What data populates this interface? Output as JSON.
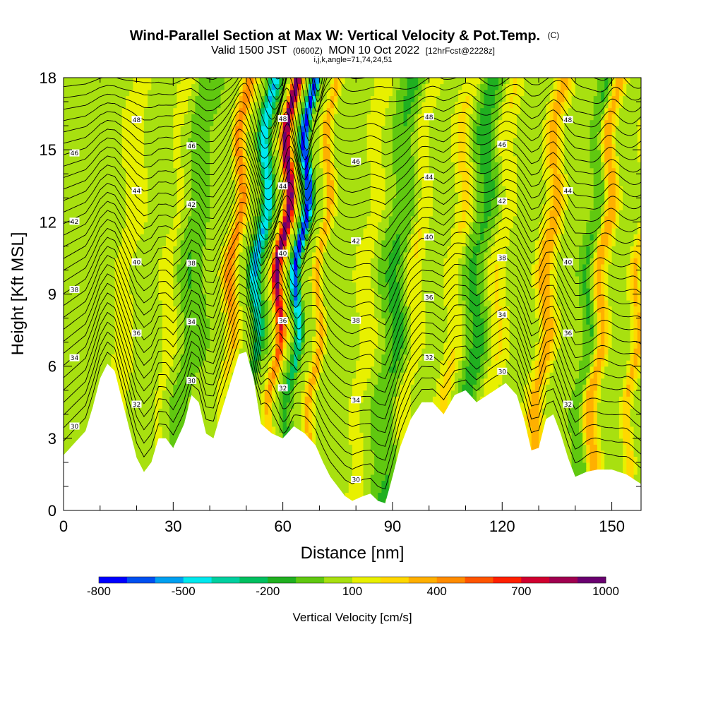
{
  "title": {
    "main": "Wind-Parallel Section at Max W: Vertical Velocity & Pot.Temp.",
    "main_tag": "(C)",
    "valid_prefix": "Valid 1500 JST",
    "valid_utc": "(0600Z)",
    "valid_date": "MON 10 Oct 2022",
    "forecast": "[12hrFcst@2228z]",
    "indices": "i,j,k,angle=71,74,24,51"
  },
  "chart_data": {
    "type": "heatmap",
    "xlabel": "Distance [nm]",
    "ylabel": "Height [Kft MSL]",
    "xlim": [
      0,
      158
    ],
    "ylim": [
      0,
      18
    ],
    "xticks": [
      0,
      30,
      60,
      90,
      120,
      150
    ],
    "yticks": [
      0,
      3,
      6,
      9,
      12,
      15,
      18
    ],
    "colorbar": {
      "title": "Vertical Velocity [cm/s]",
      "labels": [
        "-800",
        "-500",
        "-200",
        "100",
        "400",
        "700",
        "1000"
      ],
      "label_values": [
        -800,
        -500,
        -200,
        100,
        400,
        700,
        1000
      ],
      "bins": [
        -800,
        -700,
        -600,
        -500,
        -400,
        -300,
        -200,
        -100,
        0,
        100,
        200,
        300,
        400,
        500,
        600,
        700,
        800,
        900,
        1000
      ],
      "colors": [
        "#0000ff",
        "#0050f0",
        "#00a0f0",
        "#00e8ee",
        "#00d0a0",
        "#00c060",
        "#20b020",
        "#60c810",
        "#a8e010",
        "#e8f000",
        "#ffd800",
        "#ffb000",
        "#ff8c00",
        "#ff5500",
        "#ff2000",
        "#d00030",
        "#a00050",
        "#6a0070"
      ]
    },
    "theta_contours_C": [
      30,
      32,
      34,
      36,
      38,
      40,
      42,
      44,
      46,
      48
    ],
    "updraft_bands": [
      {
        "x": 13,
        "w": 3.0,
        "amp": 130
      },
      {
        "x": 25,
        "w": 2.2,
        "amp": 100
      },
      {
        "x": 42,
        "w": 1.8,
        "amp": 420
      },
      {
        "x": 55,
        "w": 1.4,
        "amp": 960
      },
      {
        "x": 66,
        "w": 1.4,
        "amp": 300
      },
      {
        "x": 79,
        "w": 2.5,
        "amp": 130
      },
      {
        "x": 92,
        "w": 2.4,
        "amp": 160
      },
      {
        "x": 103,
        "w": 2.4,
        "amp": 170
      },
      {
        "x": 115,
        "w": 2.4,
        "amp": 150
      },
      {
        "x": 128,
        "w": 2.4,
        "amp": 320
      },
      {
        "x": 143,
        "w": 2.0,
        "amp": 350
      },
      {
        "x": 153,
        "w": 1.5,
        "amp": 270
      }
    ],
    "downdraft_bands": [
      {
        "x": 49,
        "w": 1.6,
        "amp": -550
      },
      {
        "x": 60,
        "w": 1.2,
        "amp": -800
      },
      {
        "x": 31,
        "w": 3.0,
        "amp": -120
      },
      {
        "x": 87,
        "w": 3.5,
        "amp": -150
      },
      {
        "x": 109,
        "w": 3.0,
        "amp": -170
      },
      {
        "x": 140,
        "w": 2.0,
        "amp": -160
      }
    ],
    "terrain_kft": [
      [
        0,
        2.3
      ],
      [
        3,
        2.8
      ],
      [
        6,
        3.3
      ],
      [
        8,
        4.3
      ],
      [
        10,
        5.5
      ],
      [
        12,
        6.1
      ],
      [
        14,
        5.8
      ],
      [
        17,
        4.0
      ],
      [
        20,
        2.2
      ],
      [
        22,
        1.6
      ],
      [
        24,
        2.0
      ],
      [
        26,
        3.0
      ],
      [
        28,
        3.0
      ],
      [
        30,
        2.6
      ],
      [
        33,
        3.6
      ],
      [
        35,
        4.8
      ],
      [
        37,
        4.5
      ],
      [
        39,
        3.2
      ],
      [
        41,
        3.0
      ],
      [
        43,
        4.0
      ],
      [
        46,
        5.5
      ],
      [
        48,
        6.5
      ],
      [
        50,
        6.6
      ],
      [
        52,
        5.5
      ],
      [
        54,
        3.6
      ],
      [
        57,
        3.2
      ],
      [
        60,
        3.0
      ],
      [
        63,
        3.5
      ],
      [
        66,
        3.2
      ],
      [
        69,
        2.7
      ],
      [
        71,
        2.0
      ],
      [
        73,
        1.4
      ],
      [
        75,
        1.0
      ],
      [
        77,
        0.6
      ],
      [
        79,
        0.4
      ],
      [
        82,
        0.6
      ],
      [
        84,
        0.7
      ],
      [
        86,
        0.4
      ],
      [
        88,
        0.3
      ],
      [
        90,
        1.4
      ],
      [
        92,
        2.6
      ],
      [
        95,
        3.8
      ],
      [
        98,
        4.5
      ],
      [
        101,
        4.5
      ],
      [
        104,
        4.0
      ],
      [
        107,
        4.8
      ],
      [
        110,
        5.0
      ],
      [
        113,
        4.5
      ],
      [
        116,
        4.8
      ],
      [
        119,
        5.1
      ],
      [
        121,
        5.3
      ],
      [
        124,
        4.8
      ],
      [
        126,
        3.8
      ],
      [
        128,
        2.5
      ],
      [
        130,
        2.6
      ],
      [
        132,
        3.8
      ],
      [
        134,
        4.0
      ],
      [
        136,
        3.2
      ],
      [
        138,
        2.2
      ],
      [
        140,
        1.4
      ],
      [
        143,
        1.6
      ],
      [
        146,
        1.7
      ],
      [
        150,
        1.7
      ],
      [
        154,
        1.5
      ],
      [
        158,
        1.1
      ]
    ]
  }
}
